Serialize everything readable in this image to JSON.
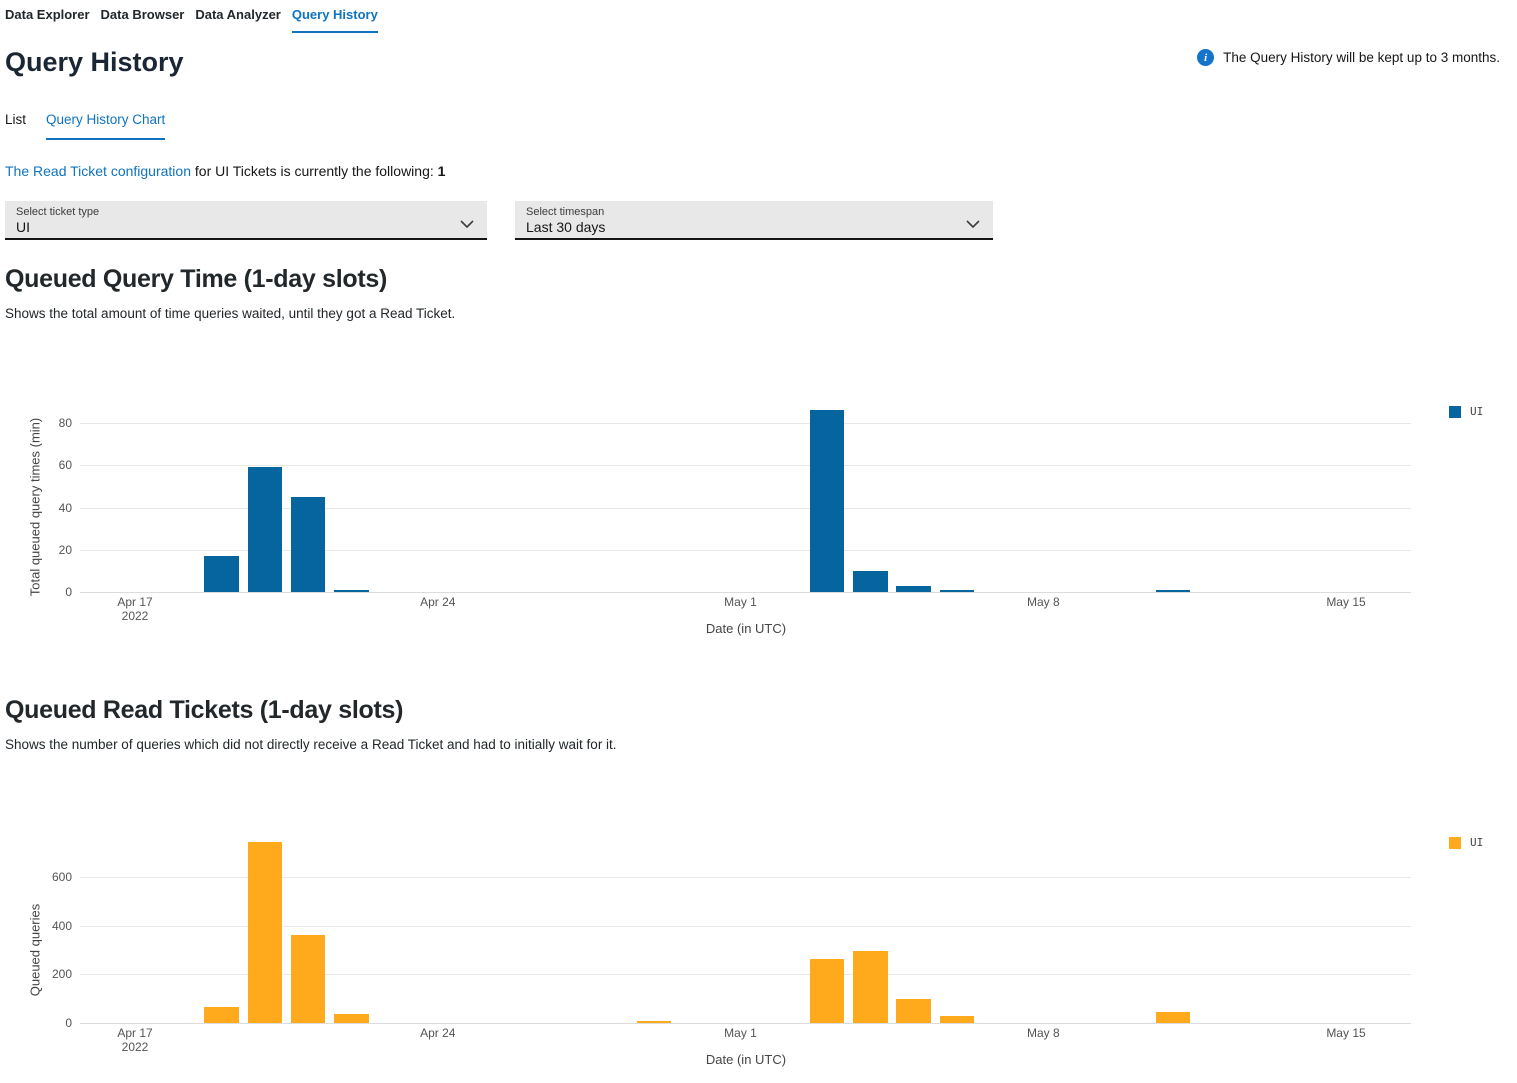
{
  "nav": {
    "items": [
      "Data Explorer",
      "Data Browser",
      "Data Analyzer",
      "Query History"
    ],
    "active": "Query History"
  },
  "page": {
    "title": "Query History",
    "info_note": "The Query History will be kept up to 3 months."
  },
  "tabs": {
    "items": [
      "List",
      "Query History Chart"
    ],
    "active": "Query History Chart"
  },
  "config_line": {
    "link": "The Read Ticket configuration",
    "middle": " for UI Tickets is currently the following: ",
    "value": "1"
  },
  "filters": {
    "ticket_type": {
      "label": "Select ticket type",
      "value": "UI"
    },
    "timespan": {
      "label": "Select timespan",
      "value": "Last 30 days"
    }
  },
  "colors": {
    "accent_blue": "#0f73c0",
    "bar_blue": "#06649e",
    "bar_orange": "#ffaa1d",
    "info_icon_blue": "#1474cc"
  },
  "chart_data": [
    {
      "type": "bar",
      "title": "Queued Query Time (1-day slots)",
      "subtitle": "Shows the total amount of time queries waited, until they got a Read Ticket.",
      "xlabel": "Date (in UTC)",
      "ylabel": "Total queued query times (min)",
      "yticks": [
        0,
        20,
        40,
        60,
        80
      ],
      "ylim": [
        0,
        90
      ],
      "xticks": [
        {
          "label": "Apr 17",
          "sub": "2022"
        },
        {
          "label": "Apr 24"
        },
        {
          "label": "May 1"
        },
        {
          "label": "May 8"
        },
        {
          "label": "May 15"
        }
      ],
      "legend": [
        {
          "name": "UI",
          "color": "#06649e"
        }
      ],
      "series": [
        {
          "name": "UI",
          "color": "#06649e",
          "points": [
            {
              "date": "Apr 19",
              "value": 17
            },
            {
              "date": "Apr 20",
              "value": 59
            },
            {
              "date": "Apr 21",
              "value": 45
            },
            {
              "date": "Apr 22",
              "value": 1
            },
            {
              "date": "May 3",
              "value": 86
            },
            {
              "date": "May 4",
              "value": 10
            },
            {
              "date": "May 5",
              "value": 3
            },
            {
              "date": "May 6",
              "value": 1
            },
            {
              "date": "May 11",
              "value": 1
            }
          ]
        }
      ]
    },
    {
      "type": "bar",
      "title": "Queued Read Tickets (1-day slots)",
      "subtitle": "Shows the number of queries which did not directly receive a Read Ticket and had to initially wait for it.",
      "xlabel": "Date (in UTC)",
      "ylabel": "Queued queries",
      "yticks": [
        0,
        200,
        400,
        600
      ],
      "ylim": [
        0,
        760
      ],
      "xticks": [
        {
          "label": "Apr 17",
          "sub": "2022"
        },
        {
          "label": "Apr 24"
        },
        {
          "label": "May 1"
        },
        {
          "label": "May 8"
        },
        {
          "label": "May 15"
        }
      ],
      "legend": [
        {
          "name": "UI",
          "color": "#ffaa1d"
        }
      ],
      "series": [
        {
          "name": "UI",
          "color": "#ffaa1d",
          "points": [
            {
              "date": "Apr 19",
              "value": 65
            },
            {
              "date": "Apr 20",
              "value": 745
            },
            {
              "date": "Apr 21",
              "value": 360
            },
            {
              "date": "Apr 22",
              "value": 38
            },
            {
              "date": "Apr 29",
              "value": 6
            },
            {
              "date": "May 3",
              "value": 262
            },
            {
              "date": "May 4",
              "value": 297
            },
            {
              "date": "May 5",
              "value": 97
            },
            {
              "date": "May 6",
              "value": 30
            },
            {
              "date": "May 11",
              "value": 44
            }
          ]
        }
      ]
    }
  ]
}
